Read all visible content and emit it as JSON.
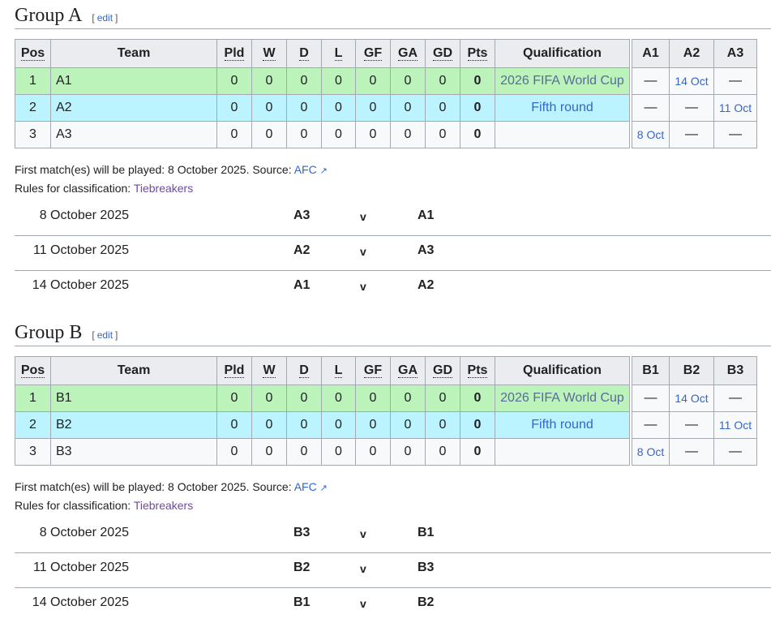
{
  "groups": [
    {
      "title": "Group A",
      "edit": "edit",
      "headers": [
        "Pos",
        "Team",
        "Pld",
        "W",
        "D",
        "L",
        "GF",
        "GA",
        "GD",
        "Pts",
        "Qualification"
      ],
      "rows": [
        {
          "pos": "1",
          "team": "A1",
          "vals": [
            "0",
            "0",
            "0",
            "0",
            "0",
            "0",
            "0",
            "0"
          ],
          "qual": "2026 FIFA World Cup"
        },
        {
          "pos": "2",
          "team": "A2",
          "vals": [
            "0",
            "0",
            "0",
            "0",
            "0",
            "0",
            "0",
            "0"
          ],
          "qual": "Fifth round"
        },
        {
          "pos": "3",
          "team": "A3",
          "vals": [
            "0",
            "0",
            "0",
            "0",
            "0",
            "0",
            "0",
            "0"
          ],
          "qual": ""
        }
      ],
      "res_headers": [
        "A1",
        "A2",
        "A3"
      ],
      "results": [
        [
          "—",
          "14 Oct",
          "—"
        ],
        [
          "—",
          "—",
          "11 Oct"
        ],
        [
          "8 Oct",
          "—",
          "—"
        ]
      ],
      "note1": "First match(es) will be played: 8 October 2025. Source: ",
      "source": "AFC",
      "note2": "Rules for classification: ",
      "rules": "Tiebreakers",
      "matches": [
        {
          "date": "8 October 2025",
          "home": "A3",
          "v": "v",
          "away": "A1"
        },
        {
          "date": "11 October 2025",
          "home": "A2",
          "v": "v",
          "away": "A3"
        },
        {
          "date": "14 October 2025",
          "home": "A1",
          "v": "v",
          "away": "A2"
        }
      ]
    },
    {
      "title": "Group B",
      "edit": "edit",
      "headers": [
        "Pos",
        "Team",
        "Pld",
        "W",
        "D",
        "L",
        "GF",
        "GA",
        "GD",
        "Pts",
        "Qualification"
      ],
      "rows": [
        {
          "pos": "1",
          "team": "B1",
          "vals": [
            "0",
            "0",
            "0",
            "0",
            "0",
            "0",
            "0",
            "0"
          ],
          "qual": "2026 FIFA World Cup"
        },
        {
          "pos": "2",
          "team": "B2",
          "vals": [
            "0",
            "0",
            "0",
            "0",
            "0",
            "0",
            "0",
            "0"
          ],
          "qual": "Fifth round"
        },
        {
          "pos": "3",
          "team": "B3",
          "vals": [
            "0",
            "0",
            "0",
            "0",
            "0",
            "0",
            "0",
            "0"
          ],
          "qual": ""
        }
      ],
      "res_headers": [
        "B1",
        "B2",
        "B3"
      ],
      "results": [
        [
          "—",
          "14 Oct",
          "—"
        ],
        [
          "—",
          "—",
          "11 Oct"
        ],
        [
          "8 Oct",
          "—",
          "—"
        ]
      ],
      "note1": "First match(es) will be played: 8 October 2025. Source: ",
      "source": "AFC",
      "note2": "Rules for classification: ",
      "rules": "Tiebreakers",
      "matches": [
        {
          "date": "8 October 2025",
          "home": "B3",
          "v": "v",
          "away": "B1"
        },
        {
          "date": "11 October 2025",
          "home": "B2",
          "v": "v",
          "away": "B3"
        },
        {
          "date": "14 October 2025",
          "home": "B1",
          "v": "v",
          "away": "B2"
        }
      ]
    }
  ],
  "colors": {
    "qualified": "#bbf3bb",
    "playoff": "#bbf3ff",
    "link": "#3366cc"
  }
}
